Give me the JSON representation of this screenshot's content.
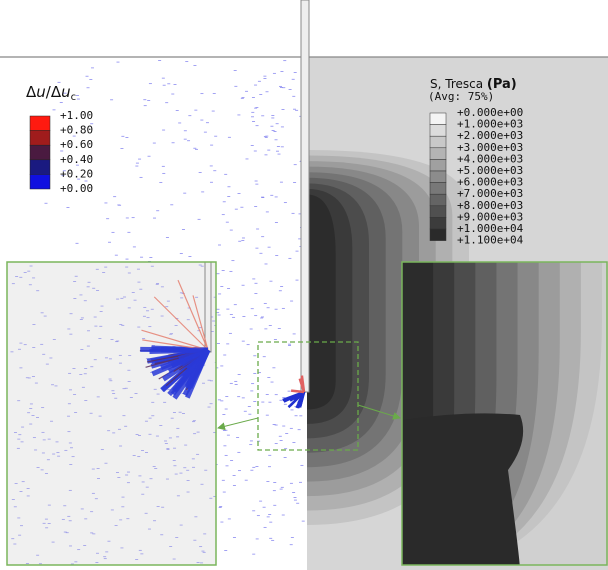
{
  "left_legend": {
    "title_parts": [
      "Δ",
      "u",
      "/Δ",
      "u",
      "c"
    ],
    "labels": [
      "+1.00",
      "+0.80",
      "+0.60",
      "+0.40",
      "+0.20",
      "+0.00"
    ],
    "colors": [
      "#ff1a10",
      "#a01c1c",
      "#4a1a40",
      "#1a1a80",
      "#1010e0"
    ]
  },
  "right_legend": {
    "title": "S, Tresca",
    "unit": "(Pa)",
    "subtitle": "(Avg: 75%)",
    "labels": [
      "+0.000e+00",
      "+1.000e+03",
      "+2.000e+03",
      "+3.000e+03",
      "+4.000e+03",
      "+5.000e+03",
      "+6.000e+03",
      "+7.000e+03",
      "+8.000e+03",
      "+9.000e+03",
      "+1.000e+04",
      "+1.100e+04"
    ],
    "colors": [
      "#f4f4f4",
      "#dcdcdc",
      "#c8c8c8",
      "#b4b4b4",
      "#a0a0a0",
      "#8c8c8c",
      "#787878",
      "#646464",
      "#505050",
      "#3c3c3c",
      "#2a2a2a"
    ]
  }
}
